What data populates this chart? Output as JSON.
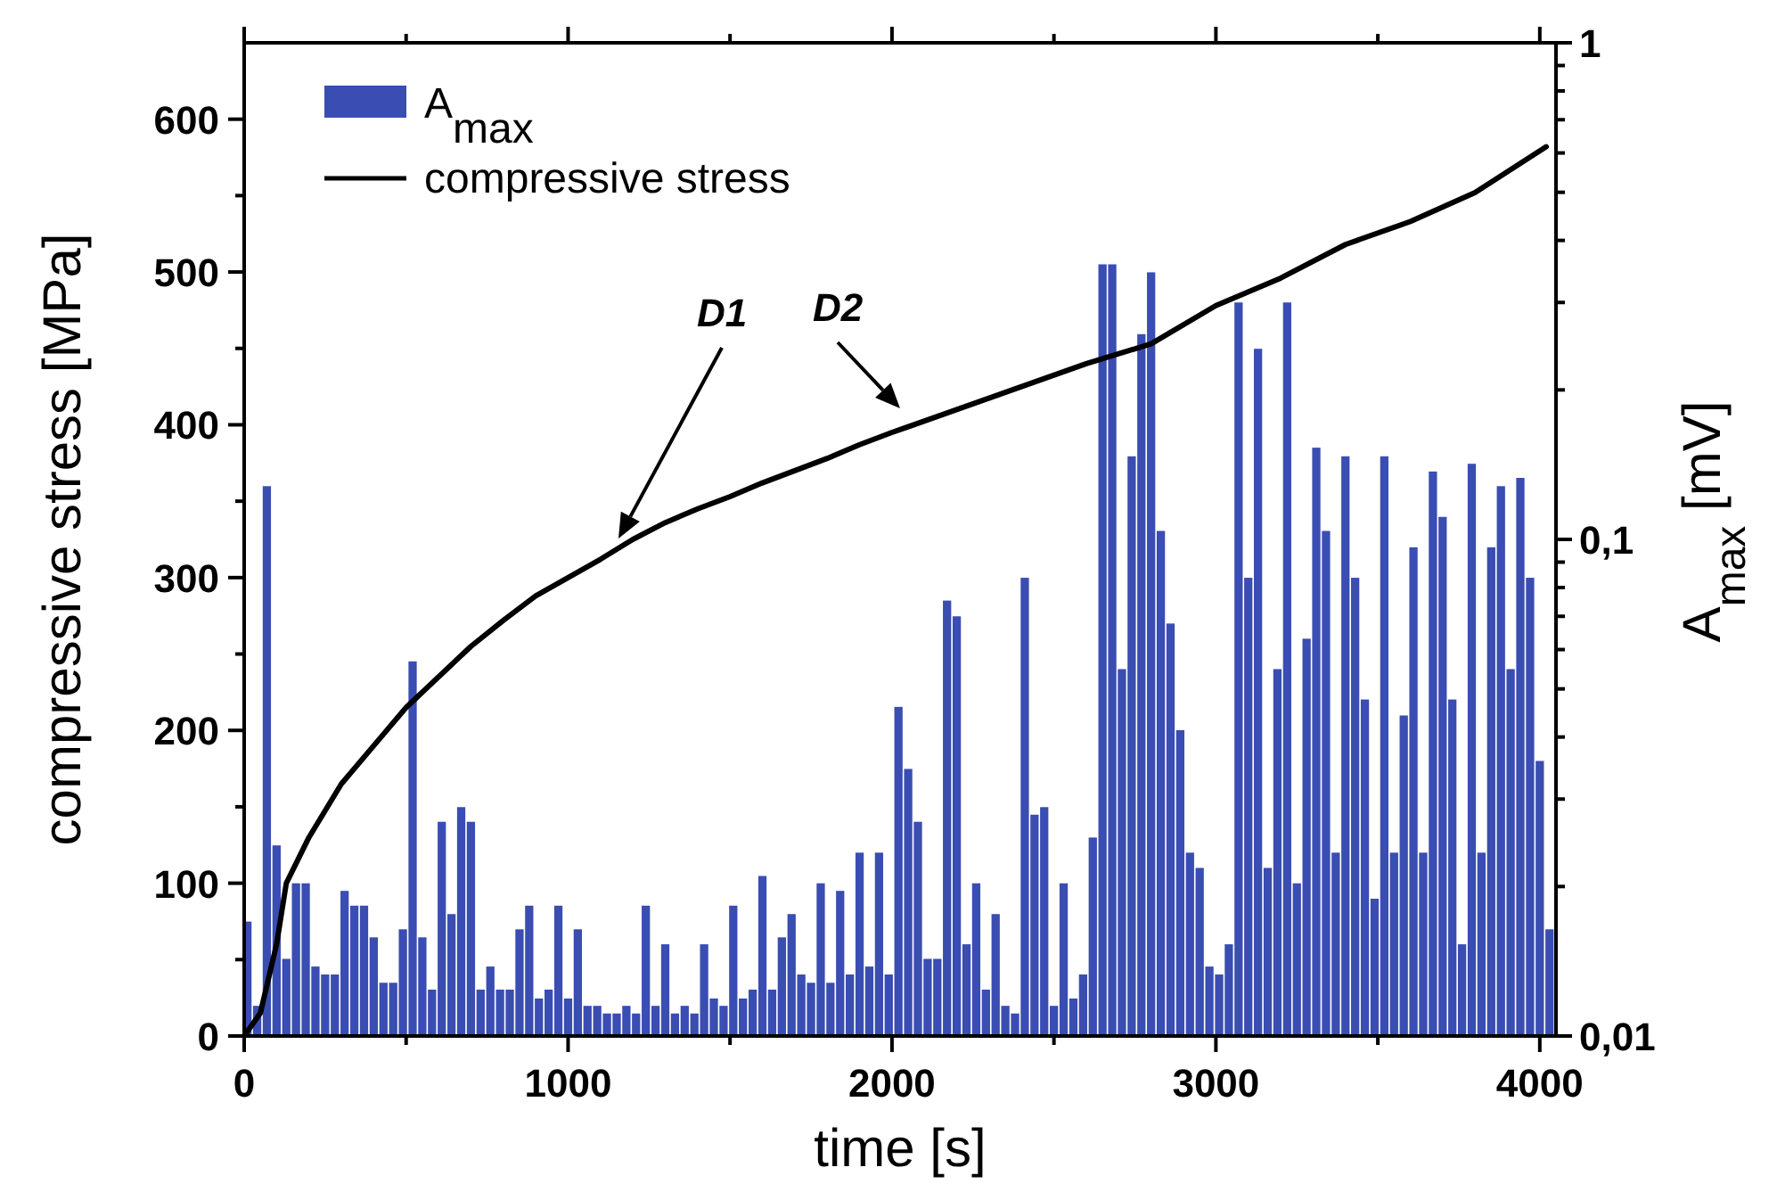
{
  "chart_data": {
    "type": "bar",
    "xlabel": "time [s]",
    "ylabel": "compressive stress [MPa]",
    "y2label": "A$_{max}$ [mV]",
    "xlim": [
      0,
      4050
    ],
    "xticks": [
      0,
      {
        "value": 500,
        "label": null
      },
      1000,
      {
        "value": 1500,
        "label": null
      },
      2000,
      {
        "value": 2500,
        "label": null
      },
      3000,
      {
        "value": 3500,
        "label": null
      },
      4000
    ],
    "ylim": [
      0,
      650
    ],
    "yticks": [
      0,
      {
        "value": 50,
        "label": null
      },
      100,
      {
        "value": 150,
        "label": null
      },
      200,
      {
        "value": 250,
        "label": null
      },
      300,
      {
        "value": 350,
        "label": null
      },
      400,
      {
        "value": 450,
        "label": null
      },
      500,
      {
        "value": 550,
        "label": null
      },
      600
    ],
    "y2lim": [
      0.01,
      1
    ],
    "y2ticks": [
      {
        "value": 0.01,
        "label": "0,01"
      },
      {
        "value": 0.02,
        "label": null
      },
      {
        "value": 0.03,
        "label": null
      },
      {
        "value": 0.04,
        "label": null
      },
      {
        "value": 0.05,
        "label": null
      },
      {
        "value": 0.06,
        "label": null
      },
      {
        "value": 0.07,
        "label": null
      },
      {
        "value": 0.08,
        "label": null
      },
      {
        "value": 0.09,
        "label": null
      },
      {
        "value": 0.1,
        "label": "0,1"
      },
      {
        "value": 0.2,
        "label": null
      },
      {
        "value": 0.3,
        "label": null
      },
      {
        "value": 0.4,
        "label": null
      },
      {
        "value": 0.5,
        "label": null
      },
      {
        "value": 0.6,
        "label": null
      },
      {
        "value": 0.7,
        "label": null
      },
      {
        "value": 0.8,
        "label": null
      },
      {
        "value": 0.9,
        "label": null
      },
      {
        "value": 1,
        "label": "1"
      }
    ],
    "log": "y2",
    "grid": false,
    "legend": "top left",
    "series": [
      {
        "name": "A$_{max}$",
        "axis": "y2",
        "color": "#3a4db2",
        "x": [
          10,
          40,
          70,
          100,
          130,
          160,
          190,
          220,
          250,
          280,
          310,
          340,
          370,
          400,
          430,
          460,
          490,
          520,
          550,
          580,
          610,
          640,
          670,
          700,
          730,
          760,
          790,
          820,
          850,
          880,
          910,
          940,
          970,
          1000,
          1030,
          1060,
          1090,
          1120,
          1150,
          1180,
          1210,
          1240,
          1270,
          1300,
          1330,
          1360,
          1390,
          1420,
          1450,
          1480,
          1510,
          1540,
          1570,
          1600,
          1630,
          1660,
          1690,
          1720,
          1750,
          1780,
          1810,
          1840,
          1870,
          1900,
          1930,
          1960,
          1990,
          2020,
          2050,
          2080,
          2110,
          2140,
          2170,
          2200,
          2230,
          2260,
          2290,
          2320,
          2350,
          2380,
          2410,
          2440,
          2470,
          2500,
          2530,
          2560,
          2590,
          2620,
          2650,
          2680,
          2710,
          2740,
          2770,
          2800,
          2830,
          2860,
          2890,
          2920,
          2950,
          2980,
          3010,
          3040,
          3070,
          3100,
          3130,
          3160,
          3190,
          3220,
          3250,
          3280,
          3310,
          3340,
          3370,
          3400,
          3430,
          3460,
          3490,
          3520,
          3550,
          3580,
          3610,
          3640,
          3670,
          3700,
          3730,
          3760,
          3790,
          3820,
          3850,
          3880,
          3910,
          3940,
          3970,
          4000,
          4030
        ],
        "values": [
          0.017,
          0.0115,
          0.128,
          0.0242,
          0.0143,
          0.0203,
          0.0203,
          0.0138,
          0.0133,
          0.0133,
          0.0196,
          0.0183,
          0.0183,
          0.0158,
          0.0128,
          0.0128,
          0.0164,
          0.0568,
          0.0158,
          0.0124,
          0.027,
          0.0176,
          0.0289,
          0.027,
          0.0124,
          0.0138,
          0.0124,
          0.0124,
          0.0164,
          0.0183,
          0.0119,
          0.0124,
          0.0183,
          0.0119,
          0.0164,
          0.0115,
          0.0115,
          0.0111,
          0.0111,
          0.0115,
          0.0111,
          0.0183,
          0.0115,
          0.0153,
          0.0111,
          0.0115,
          0.0111,
          0.0153,
          0.0119,
          0.0115,
          0.0183,
          0.0119,
          0.0124,
          0.021,
          0.0124,
          0.0158,
          0.0176,
          0.0133,
          0.0128,
          0.0203,
          0.0128,
          0.0196,
          0.0133,
          0.0234,
          0.0138,
          0.0234,
          0.0133,
          0.046,
          0.0345,
          0.027,
          0.0143,
          0.0143,
          0.0753,
          0.07,
          0.0153,
          0.0203,
          0.0124,
          0.0176,
          0.0115,
          0.0111,
          0.0837,
          0.0279,
          0.0289,
          0.0115,
          0.0203,
          0.0119,
          0.0133,
          0.0251,
          0.358,
          0.358,
          0.0548,
          0.147,
          0.259,
          0.345,
          0.104,
          0.0677,
          0.0413,
          0.0234,
          0.0218,
          0.0138,
          0.0133,
          0.0153,
          0.3,
          0.0837,
          0.242,
          0.0218,
          0.0548,
          0.3,
          0.0203,
          0.0631,
          0.153,
          0.104,
          0.0234,
          0.147,
          0.0837,
          0.0476,
          0.0189,
          0.147,
          0.0234,
          0.0442,
          0.0964,
          0.0234,
          0.137,
          0.111,
          0.0476,
          0.0153,
          0.142,
          0.0234,
          0.0964,
          0.128,
          0.0548,
          0.133,
          0.0837,
          0.0358,
          0.0164
        ]
      },
      {
        "name": "compressive stress",
        "type": "line",
        "axis": "y",
        "color": "#000000",
        "x": [
          0,
          50,
          100,
          130,
          200,
          300,
          400,
          500,
          600,
          700,
          800,
          900,
          1000,
          1100,
          1200,
          1300,
          1400,
          1500,
          1600,
          1700,
          1800,
          1900,
          2000,
          2200,
          2400,
          2600,
          2800,
          3000,
          3200,
          3400,
          3600,
          3800,
          4020
        ],
        "values": [
          0,
          15,
          60,
          100,
          130,
          165,
          190,
          215,
          235,
          255,
          272,
          288,
          300,
          312,
          325,
          336,
          345,
          353,
          362,
          370,
          378,
          387,
          395,
          410,
          425,
          440,
          453,
          478,
          496,
          518,
          533,
          552,
          582
        ]
      }
    ],
    "annotations": [
      "D1",
      "D2"
    ]
  }
}
